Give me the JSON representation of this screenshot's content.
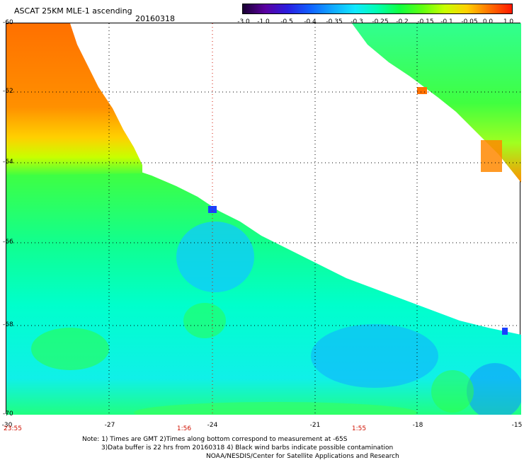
{
  "header": {
    "title": "ASCAT 25KM MLE-1 ascending",
    "date": "20160318"
  },
  "colorbar": {
    "labels": [
      "-3.0",
      "-1.0",
      "-0.5",
      "-0.4",
      "-0.35",
      "-0.3",
      "-0.25",
      "-0.2",
      "-0.15",
      "-0.1",
      "-0.05",
      "0.0",
      "1.0"
    ],
    "colors": [
      "#1a0033",
      "#5a00a0",
      "#2a1ee0",
      "#1060ff",
      "#10a8ff",
      "#10e8ff",
      "#00ffb0",
      "#10ff40",
      "#60ff10",
      "#c8ff00",
      "#ffd000",
      "#ff7000",
      "#ff1800"
    ]
  },
  "axes": {
    "lat_labels": [
      "-60",
      "-62",
      "-64",
      "-66",
      "-68",
      "-70"
    ],
    "lon_labels": [
      "-30",
      "-27",
      "-24",
      "-21",
      "-18",
      "-15"
    ],
    "time_labels": [
      "23:55",
      "1:56",
      "1:55"
    ]
  },
  "notes": {
    "line1": "Note: 1) Times are GMT 2)Times along bottom correspond to measurement at -65S",
    "line2": "3)Data buffer is 22 hrs from 20160318 4) Black wind barbs indicate possible contamination",
    "line3": "NOAA/NESDIS/Center for Satellite Applications and Research"
  }
}
